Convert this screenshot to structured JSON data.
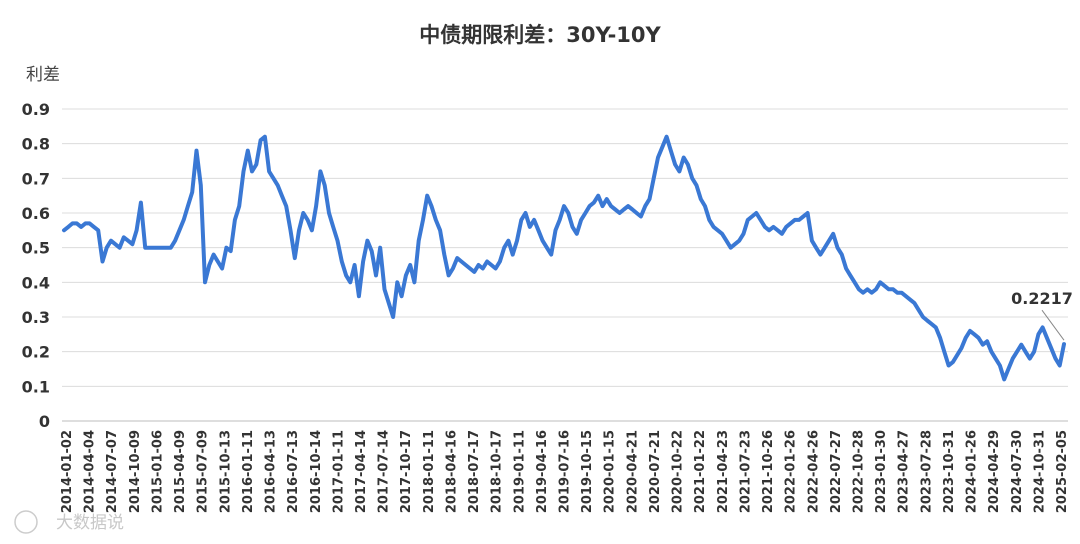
{
  "chart_data": {
    "type": "line",
    "title": "中债期限利差：30Y-10Y",
    "ylabel": "利差",
    "ylim": [
      0,
      0.9
    ],
    "yticks": [
      0,
      0.1,
      0.2,
      0.3,
      0.4,
      0.5,
      0.6,
      0.7,
      0.8,
      0.9
    ],
    "ytick_labels": [
      "0",
      "0.1",
      "0.2",
      "0.3",
      "0.4",
      "0.5",
      "0.6",
      "0.7",
      "0.8",
      "0.9"
    ],
    "grid": true,
    "line_color": "#3a78d4",
    "x_labels": [
      "2014-01-02",
      "2014-04-04",
      "2014-07-07",
      "2014-10-09",
      "2015-01-06",
      "2015-04-09",
      "2015-07-09",
      "2015-10-13",
      "2016-01-11",
      "2016-04-13",
      "2016-07-13",
      "2016-10-14",
      "2017-01-11",
      "2017-04-14",
      "2017-07-14",
      "2017-10-17",
      "2018-01-11",
      "2018-04-16",
      "2018-07-17",
      "2018-10-17",
      "2019-01-11",
      "2019-04-16",
      "2019-07-16",
      "2019-10-15",
      "2020-01-15",
      "2020-04-21",
      "2020-07-21",
      "2020-10-22",
      "2021-01-22",
      "2021-04-23",
      "2021-07-23",
      "2021-10-26",
      "2022-01-26",
      "2022-04-26",
      "2022-07-27",
      "2022-10-28",
      "2023-01-30",
      "2023-04-27",
      "2023-07-28",
      "2023-10-31",
      "2024-01-26",
      "2024-04-29",
      "2024-07-30",
      "2024-10-31",
      "2025-02-05"
    ],
    "series": [
      {
        "values": [
          0.55,
          0.56,
          0.57,
          0.57,
          0.56,
          0.57,
          0.57,
          0.56,
          0.55,
          0.46,
          0.5,
          0.52,
          0.51,
          0.5,
          0.53,
          0.52,
          0.51,
          0.55,
          0.63,
          0.5,
          0.5,
          0.5,
          0.5,
          0.5,
          0.5,
          0.5,
          0.52,
          0.55,
          0.58,
          0.62,
          0.66,
          0.78,
          0.68,
          0.4,
          0.45,
          0.48,
          0.46,
          0.44,
          0.5,
          0.49,
          0.58,
          0.62,
          0.72,
          0.78,
          0.72,
          0.74,
          0.81,
          0.82,
          0.72,
          0.7,
          0.68,
          0.65,
          0.62,
          0.55,
          0.47,
          0.55,
          0.6,
          0.58,
          0.55,
          0.62,
          0.72,
          0.68,
          0.6,
          0.56,
          0.52,
          0.46,
          0.42,
          0.4,
          0.45,
          0.36,
          0.46,
          0.52,
          0.49,
          0.42,
          0.5,
          0.38,
          0.34,
          0.3,
          0.4,
          0.36,
          0.42,
          0.45,
          0.4,
          0.52,
          0.58,
          0.65,
          0.62,
          0.58,
          0.55,
          0.48,
          0.42,
          0.44,
          0.47,
          0.46,
          0.45,
          0.44,
          0.43,
          0.45,
          0.44,
          0.46,
          0.45,
          0.44,
          0.46,
          0.5,
          0.52,
          0.48,
          0.52,
          0.58,
          0.6,
          0.56,
          0.58,
          0.55,
          0.52,
          0.5,
          0.48,
          0.55,
          0.58,
          0.62,
          0.6,
          0.56,
          0.54,
          0.58,
          0.6,
          0.62,
          0.63,
          0.65,
          0.62,
          0.64,
          0.62,
          0.61,
          0.6,
          0.61,
          0.62,
          0.61,
          0.6,
          0.59,
          0.62,
          0.64,
          0.7,
          0.76,
          0.79,
          0.82,
          0.78,
          0.74,
          0.72,
          0.76,
          0.74,
          0.7,
          0.68,
          0.64,
          0.62,
          0.58,
          0.56,
          0.55,
          0.54,
          0.52,
          0.5,
          0.51,
          0.52,
          0.54,
          0.58,
          0.59,
          0.6,
          0.58,
          0.56,
          0.55,
          0.56,
          0.55,
          0.54,
          0.56,
          0.57,
          0.58,
          0.58,
          0.59,
          0.6,
          0.52,
          0.5,
          0.48,
          0.5,
          0.52,
          0.54,
          0.5,
          0.48,
          0.44,
          0.42,
          0.4,
          0.38,
          0.37,
          0.38,
          0.37,
          0.38,
          0.4,
          0.39,
          0.38,
          0.38,
          0.37,
          0.37,
          0.36,
          0.35,
          0.34,
          0.32,
          0.3,
          0.29,
          0.28,
          0.27,
          0.24,
          0.2,
          0.16,
          0.17,
          0.19,
          0.21,
          0.24,
          0.26,
          0.25,
          0.24,
          0.22,
          0.23,
          0.2,
          0.18,
          0.16,
          0.12,
          0.15,
          0.18,
          0.2,
          0.22,
          0.2,
          0.18,
          0.2,
          0.25,
          0.27,
          0.24,
          0.21,
          0.18,
          0.16,
          0.2217
        ]
      }
    ],
    "annotation": {
      "label": "0.2217",
      "value": 0.2217
    },
    "watermark": "大数据说"
  }
}
